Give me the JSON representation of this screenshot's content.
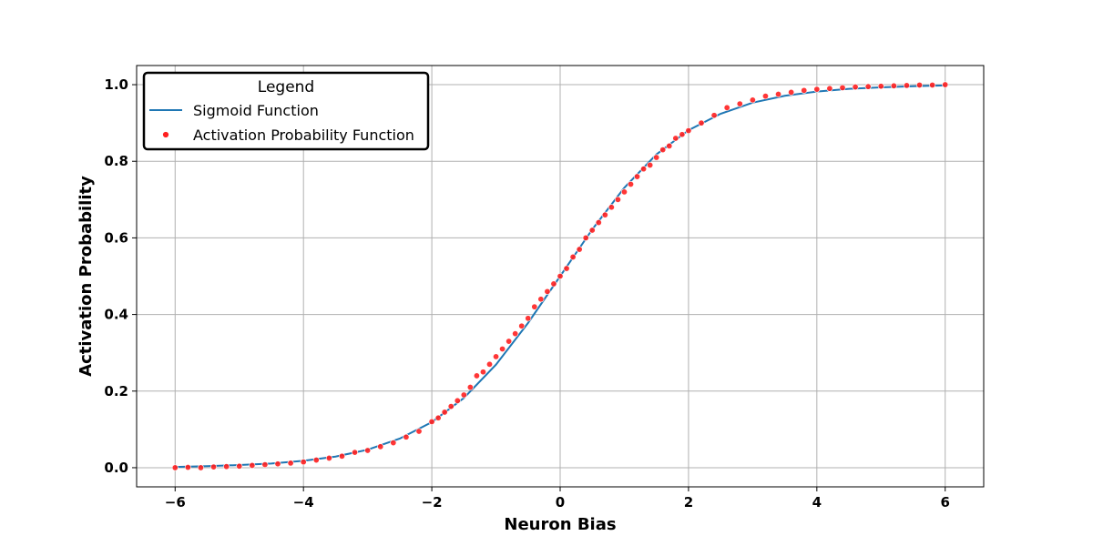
{
  "chart_data": {
    "type": "scatter",
    "xlabel": "Neuron Bias",
    "ylabel": "Activation Probability",
    "xlim": [
      -6.6,
      6.6
    ],
    "ylim": [
      -0.05,
      1.05
    ],
    "x_ticks": [
      -6,
      -4,
      -2,
      0,
      2,
      4,
      6
    ],
    "y_ticks": [
      0.0,
      0.2,
      0.4,
      0.6,
      0.8,
      1.0
    ],
    "x_tick_labels": [
      "−6",
      "−4",
      "−2",
      "0",
      "2",
      "4",
      "6"
    ],
    "y_tick_labels": [
      "0.0",
      "0.2",
      "0.4",
      "0.6",
      "0.8",
      "1.0"
    ],
    "grid": true,
    "legend": {
      "title": "Legend",
      "placement": "top-left",
      "entries": [
        "Sigmoid Function",
        "Activation Probability Function"
      ]
    },
    "series": [
      {
        "name": "Sigmoid Function",
        "kind": "line",
        "color": "#1f77b4",
        "x": [
          -6.0,
          -5.5,
          -5.0,
          -4.5,
          -4.0,
          -3.5,
          -3.0,
          -2.5,
          -2.0,
          -1.5,
          -1.0,
          -0.5,
          0.0,
          0.5,
          1.0,
          1.5,
          2.0,
          2.5,
          3.0,
          3.5,
          4.0,
          4.5,
          5.0,
          5.5,
          6.0
        ],
        "y": [
          0.002,
          0.004,
          0.007,
          0.011,
          0.018,
          0.029,
          0.047,
          0.076,
          0.119,
          0.182,
          0.269,
          0.378,
          0.5,
          0.622,
          0.731,
          0.818,
          0.881,
          0.924,
          0.953,
          0.971,
          0.982,
          0.989,
          0.993,
          0.996,
          0.998
        ]
      },
      {
        "name": "Activation Probability Function",
        "kind": "scatter",
        "color": "#ff2020",
        "x": [
          -6.0,
          -5.8,
          -5.6,
          -5.4,
          -5.2,
          -5.0,
          -4.8,
          -4.6,
          -4.4,
          -4.2,
          -4.0,
          -3.8,
          -3.6,
          -3.4,
          -3.2,
          -3.0,
          -2.8,
          -2.6,
          -2.4,
          -2.2,
          -2.0,
          -1.9,
          -1.8,
          -1.7,
          -1.6,
          -1.5,
          -1.4,
          -1.3,
          -1.2,
          -1.1,
          -1.0,
          -0.9,
          -0.8,
          -0.7,
          -0.6,
          -0.5,
          -0.4,
          -0.3,
          -0.2,
          -0.1,
          0.0,
          0.1,
          0.2,
          0.3,
          0.4,
          0.5,
          0.6,
          0.7,
          0.8,
          0.9,
          1.0,
          1.1,
          1.2,
          1.3,
          1.4,
          1.5,
          1.6,
          1.7,
          1.8,
          1.9,
          2.0,
          2.2,
          2.4,
          2.6,
          2.8,
          3.0,
          3.2,
          3.4,
          3.6,
          3.8,
          4.0,
          4.2,
          4.4,
          4.6,
          4.8,
          5.0,
          5.2,
          5.4,
          5.6,
          5.8,
          6.0
        ],
        "y": [
          0.0,
          0.001,
          0.0,
          0.002,
          0.003,
          0.004,
          0.006,
          0.008,
          0.01,
          0.012,
          0.015,
          0.02,
          0.025,
          0.03,
          0.04,
          0.045,
          0.055,
          0.065,
          0.08,
          0.095,
          0.12,
          0.13,
          0.145,
          0.16,
          0.175,
          0.19,
          0.21,
          0.24,
          0.25,
          0.27,
          0.29,
          0.31,
          0.33,
          0.35,
          0.37,
          0.39,
          0.42,
          0.44,
          0.46,
          0.48,
          0.5,
          0.52,
          0.55,
          0.57,
          0.6,
          0.62,
          0.64,
          0.66,
          0.68,
          0.7,
          0.72,
          0.74,
          0.76,
          0.78,
          0.79,
          0.81,
          0.83,
          0.84,
          0.86,
          0.87,
          0.88,
          0.9,
          0.92,
          0.94,
          0.95,
          0.96,
          0.97,
          0.975,
          0.98,
          0.985,
          0.988,
          0.99,
          0.992,
          0.994,
          0.995,
          0.996,
          0.997,
          0.998,
          0.999,
          0.999,
          1.0
        ]
      }
    ]
  }
}
